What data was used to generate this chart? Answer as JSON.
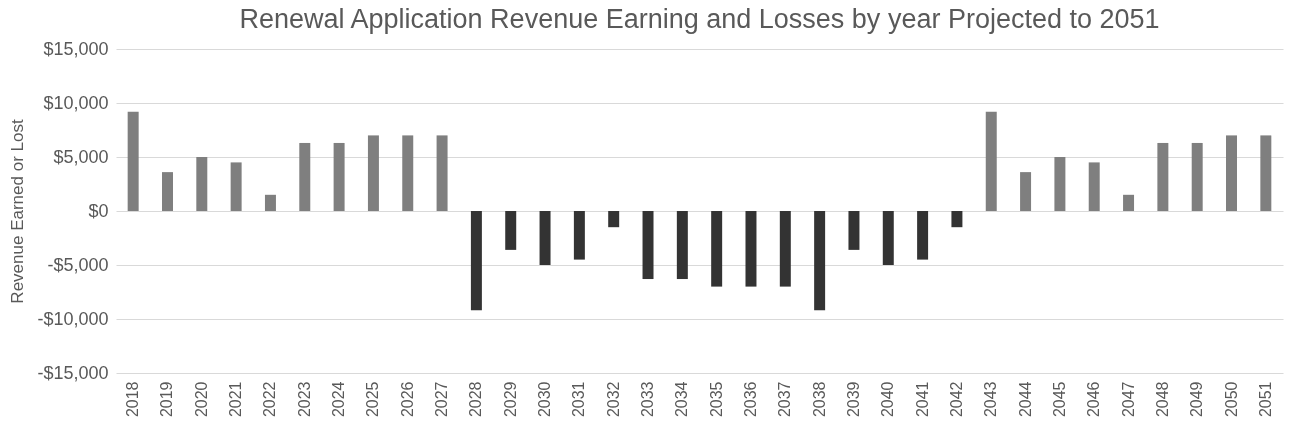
{
  "chart_data": {
    "type": "bar",
    "title": "Renewal Application Revenue Earning and Losses by year Projected to 2051",
    "ylabel": "Revenue Earned or Lost",
    "categories": [
      "2018",
      "2019",
      "2020",
      "2021",
      "2022",
      "2023",
      "2024",
      "2025",
      "2026",
      "2027",
      "2028",
      "2029",
      "2030",
      "2031",
      "2032",
      "2033",
      "2034",
      "2035",
      "2036",
      "2037",
      "2038",
      "2039",
      "2040",
      "2041",
      "2042",
      "2043",
      "2044",
      "2045",
      "2046",
      "2047",
      "2048",
      "2049",
      "2050",
      "2051"
    ],
    "values": [
      9200,
      3600,
      5000,
      4500,
      1500,
      6300,
      6300,
      7000,
      7000,
      7000,
      -9200,
      -3600,
      -5000,
      -4500,
      -1500,
      -6300,
      -6300,
      -7000,
      -7000,
      -7000,
      -9200,
      -3600,
      -5000,
      -4500,
      -1500,
      9200,
      3600,
      5000,
      4500,
      1500,
      6300,
      6300,
      7000,
      7000
    ],
    "colors": [
      "#7f7f7f",
      "#7f7f7f",
      "#7f7f7f",
      "#7f7f7f",
      "#7f7f7f",
      "#7f7f7f",
      "#7f7f7f",
      "#7f7f7f",
      "#7f7f7f",
      "#7f7f7f",
      "#333333",
      "#333333",
      "#333333",
      "#333333",
      "#333333",
      "#333333",
      "#333333",
      "#333333",
      "#333333",
      "#333333",
      "#333333",
      "#333333",
      "#333333",
      "#333333",
      "#333333",
      "#7f7f7f",
      "#7f7f7f",
      "#7f7f7f",
      "#7f7f7f",
      "#7f7f7f",
      "#7f7f7f",
      "#7f7f7f",
      "#7f7f7f",
      "#7f7f7f"
    ],
    "ylim": [
      -15000,
      15000
    ],
    "yticks": [
      {
        "value": -15000,
        "label": "-$15,000"
      },
      {
        "value": -10000,
        "label": "-$10,000"
      },
      {
        "value": -5000,
        "label": "-$5,000"
      },
      {
        "value": 0,
        "label": "$0"
      },
      {
        "value": 5000,
        "label": "$5,000"
      },
      {
        "value": 10000,
        "label": "$10,000"
      },
      {
        "value": 15000,
        "label": "$15,000"
      }
    ],
    "grid": "y"
  }
}
